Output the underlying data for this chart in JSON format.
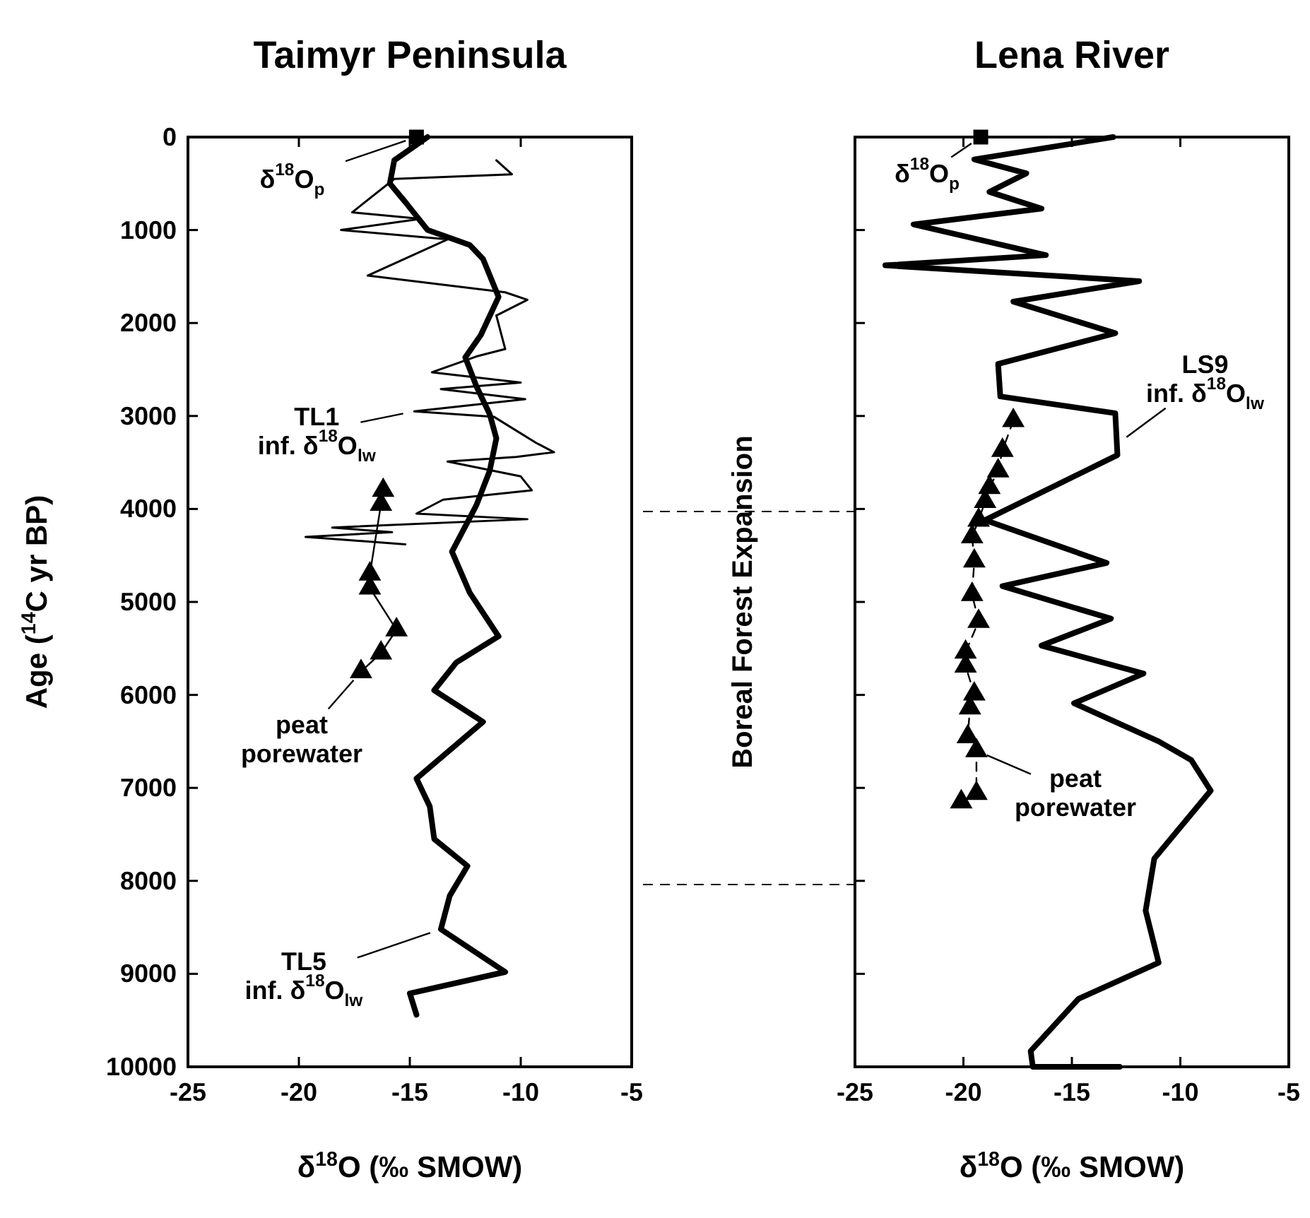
{
  "chart_data": [
    {
      "type": "line",
      "title": "Taimyr Peninsula",
      "xlabel": "δ$^{18}$O (‰ SMOW)",
      "ylabel": "Age ($^{14}$C yr BP)",
      "xlim": [
        -25,
        -5
      ],
      "ylim": [
        10000,
        0
      ],
      "xticks": [
        -25,
        -20,
        -15,
        -10,
        -5
      ],
      "yticks": [
        0,
        1000,
        2000,
        3000,
        4000,
        5000,
        6000,
        7000,
        8000,
        9000,
        10000
      ],
      "grid": false,
      "series": [
        {
          "color": "#000000",
          "marker": "none",
          "line_style": "solid",
          "x": [
            -14.2,
            -15.7,
            -15.9,
            -15.2,
            -14.2,
            -12.3,
            -11.7,
            -11.0,
            -11.8,
            -12.5,
            -12.0,
            -11.4,
            -11.1,
            -11.4,
            -12.0,
            -13.1,
            -12.3,
            -11.0,
            -12.9,
            -13.9,
            -11.7,
            -14.7,
            -14.1,
            -13.9,
            -12.4,
            -13.2,
            -13.6,
            -10.7,
            -15.0,
            -14.7
          ],
          "values": [
            0,
            250,
            500,
            700,
            1000,
            1160,
            1310,
            1720,
            2130,
            2370,
            2680,
            2980,
            3240,
            3590,
            3960,
            4460,
            4900,
            5370,
            5650,
            5950,
            6290,
            6900,
            7200,
            7550,
            7840,
            8160,
            8520,
            8980,
            9210,
            9440
          ]
        },
        {
          "color": "#000000",
          "marker": "none",
          "line_style": "solid",
          "x": [
            -11.1,
            -10.4,
            -15.7,
            -17.6,
            -14.5,
            -18.1,
            -13.3,
            -16.9,
            -10.7,
            -9.7,
            -11.1,
            -10.7,
            -12.0,
            -14.0,
            -10.0,
            -13.6,
            -9.8,
            -14.8,
            -11.2,
            -9.3,
            -8.5,
            -10.2,
            -13.3,
            -10.0,
            -9.5,
            -13.5,
            -14.7,
            -9.7,
            -18.5,
            -15.8,
            -19.7,
            -15.2
          ],
          "values": [
            250,
            400,
            450,
            810,
            880,
            1000,
            1100,
            1490,
            1670,
            1750,
            1920,
            2280,
            2360,
            2530,
            2640,
            2710,
            2820,
            2950,
            3010,
            3290,
            3390,
            3440,
            3490,
            3650,
            3800,
            3900,
            4050,
            4110,
            4200,
            4250,
            4300,
            4380
          ]
        },
        {
          "color": "#000000",
          "marker": "triangle",
          "line_style": "solid",
          "x": [
            -16.2,
            -16.3,
            -16.8,
            -16.8,
            -15.6,
            -16.3,
            -17.2
          ],
          "values": [
            3800,
            3950,
            4700,
            4850,
            5300,
            5550,
            5750
          ]
        },
        {
          "type": "scatter",
          "color": "#000000",
          "marker": "square",
          "x": [
            -14.7
          ],
          "values": [
            0
          ]
        }
      ],
      "annotations": [
        {
          "text": "δ$^{18}$O$_{p}$",
          "x": -14.7,
          "y": 0
        },
        {
          "text": "TL1\ninf. δ$^{18}$O$_{lw}$",
          "x": -14.8,
          "y": 2950
        },
        {
          "text": "peat\nporewater",
          "x": -17.2,
          "y": 5750
        },
        {
          "text": "TL5\ninf. δ$^{18}$O$_{lw}$",
          "x": -13.6,
          "y": 8520
        }
      ]
    },
    {
      "type": "line",
      "title": "Lena River",
      "xlabel": "δ$^{18}$O (‰ SMOW)",
      "xlim": [
        -25,
        -5
      ],
      "ylim": [
        10000,
        0
      ],
      "xticks": [
        -25,
        -20,
        -15,
        -10,
        -5
      ],
      "yticks": [
        0,
        1000,
        2000,
        3000,
        4000,
        5000,
        6000,
        7000,
        8000,
        9000,
        10000
      ],
      "tick_labels": "x",
      "grid": false,
      "series": [
        {
          "color": "#000000",
          "marker": "none",
          "line_style": "solid",
          "x": [
            -13.1,
            -19.5,
            -17.1,
            -18.8,
            -16.4,
            -22.3,
            -16.2,
            -23.6,
            -11.9,
            -17.7,
            -13.0,
            -18.4,
            -18.3,
            -13.0,
            -12.9,
            -19.0,
            -13.4,
            -18.2,
            -13.2,
            -16.4,
            -11.7,
            -14.9,
            -11.0,
            -9.5,
            -8.6,
            -11.2,
            -11.6,
            -11.0,
            -14.7,
            -16.9,
            -16.8,
            -12.8
          ],
          "values": [
            0,
            240,
            390,
            590,
            770,
            940,
            1270,
            1380,
            1550,
            1770,
            2110,
            2440,
            2790,
            2970,
            3420,
            4120,
            4580,
            4830,
            5180,
            5470,
            5770,
            6090,
            6500,
            6700,
            7030,
            7760,
            8320,
            8880,
            9270,
            9830,
            10000,
            10000
          ]
        },
        {
          "color": "#000000",
          "marker": "triangle",
          "line_style": "dashed",
          "x": [
            -17.7,
            -18.2,
            -18.4,
            -18.8,
            -19.0,
            -19.3,
            -19.6,
            -19.5,
            -19.6,
            -19.3,
            -19.9,
            -19.9,
            -19.5,
            -19.7,
            -19.8,
            -19.4,
            -19.4,
            -20.1
          ],
          "values": [
            3050,
            3370,
            3590,
            3770,
            3920,
            4120,
            4300,
            4560,
            4920,
            5210,
            5540,
            5690,
            5990,
            6140,
            6450,
            6600,
            7060,
            7150
          ]
        },
        {
          "type": "scatter",
          "color": "#000000",
          "marker": "square",
          "x": [
            -19.2
          ],
          "values": [
            0
          ]
        }
      ],
      "annotations": [
        "Boreal Forest Expansion",
        {
          "text": "δ$^{18}$O$_{p}$",
          "x": -19.2,
          "y": 0
        },
        {
          "text": "LS9\ninf. δ$^{18}$O$_{lw}$",
          "x": -12.9,
          "y": 3300
        },
        {
          "text": "peat\nporewater",
          "x": -19.4,
          "y": 6600
        }
      ]
    }
  ]
}
